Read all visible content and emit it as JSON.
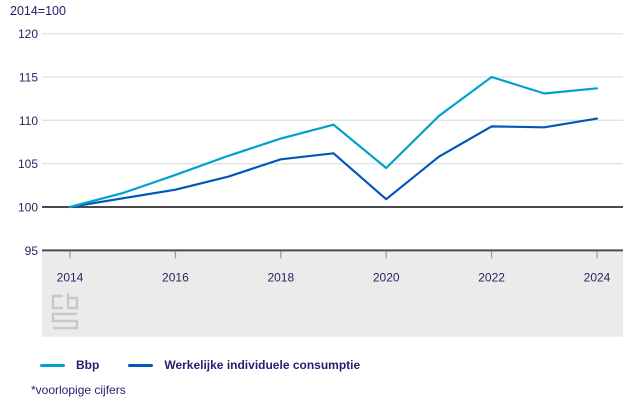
{
  "header": {
    "unit_label": "2014=100"
  },
  "footnote": "*voorlopige cijfers",
  "chart_data": {
    "type": "line",
    "title": "2014=100",
    "x": [
      2014,
      2015,
      2016,
      2017,
      2018,
      2019,
      2020,
      2021,
      2022,
      2023,
      2024
    ],
    "xticks": [
      2014,
      2016,
      2018,
      2020,
      2022,
      2024
    ],
    "yticks": [
      95,
      100,
      105,
      110,
      115,
      120
    ],
    "ylim": [
      95,
      120
    ],
    "baseline": 100,
    "grid": true,
    "legend_position": "bottom",
    "series": [
      {
        "name": "Bbp",
        "color": "#00a1cd",
        "values": [
          100,
          101.6,
          103.7,
          105.9,
          107.9,
          109.5,
          104.5,
          110.5,
          115,
          113.1,
          113.7
        ]
      },
      {
        "name": "Werkelijke individuele consumptie",
        "color": "#0058b8",
        "values": [
          100,
          101,
          102,
          103.5,
          105.5,
          106.2,
          100.9,
          105.8,
          109.3,
          109.2,
          110.2
        ]
      }
    ],
    "colors": {
      "grid": "#e3e3e3",
      "baseline": "#4a4a4c",
      "tick": "#9b9b9b",
      "band": "#ebebeb",
      "axis_text": "#29255e"
    }
  }
}
